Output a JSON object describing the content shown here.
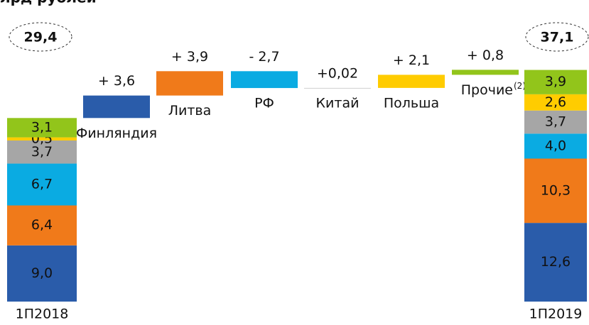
{
  "chart_data": {
    "type": "waterfall",
    "title": "лрд рублей",
    "ylim": [
      0,
      48.3
    ],
    "stack_colors": [
      "#2a5caa",
      "#f07a1a",
      "#0aabe2",
      "#a6a6a6",
      "#ffcc00",
      "#92c51b"
    ],
    "start": {
      "category": "1П2018",
      "total": 29.4,
      "total_label": "29,4",
      "values": [
        9.0,
        6.4,
        6.7,
        3.7,
        0.5,
        3.1
      ],
      "value_labels": [
        "9,0",
        "6,4",
        "6,7",
        "3,7",
        "0,5",
        "3,1"
      ]
    },
    "steps": {
      "categories": [
        "Финляндия",
        "Литва",
        "РФ",
        "Китай",
        "Польша",
        "Прочие"
      ],
      "values": [
        3.6,
        3.9,
        -2.7,
        0.02,
        2.1,
        0.8
      ],
      "value_labels": [
        "+ 3,6",
        "+ 3,9",
        "- 2,7",
        "+0,02",
        "+ 2,1",
        "+ 0,8"
      ],
      "colors": [
        "#2a5caa",
        "#f07a1a",
        "#0aabe2",
        "#d0d0d0",
        "#ffcc00",
        "#92c51b"
      ],
      "footnote": "(2)"
    },
    "end": {
      "category": "1П2019",
      "total": 37.1,
      "total_label": "37,1",
      "values": [
        12.6,
        10.3,
        4.0,
        3.7,
        2.6,
        3.9
      ],
      "value_labels": [
        "12,6",
        "10,3",
        "4,0",
        "3,7",
        "2,6",
        "3,9"
      ]
    }
  }
}
